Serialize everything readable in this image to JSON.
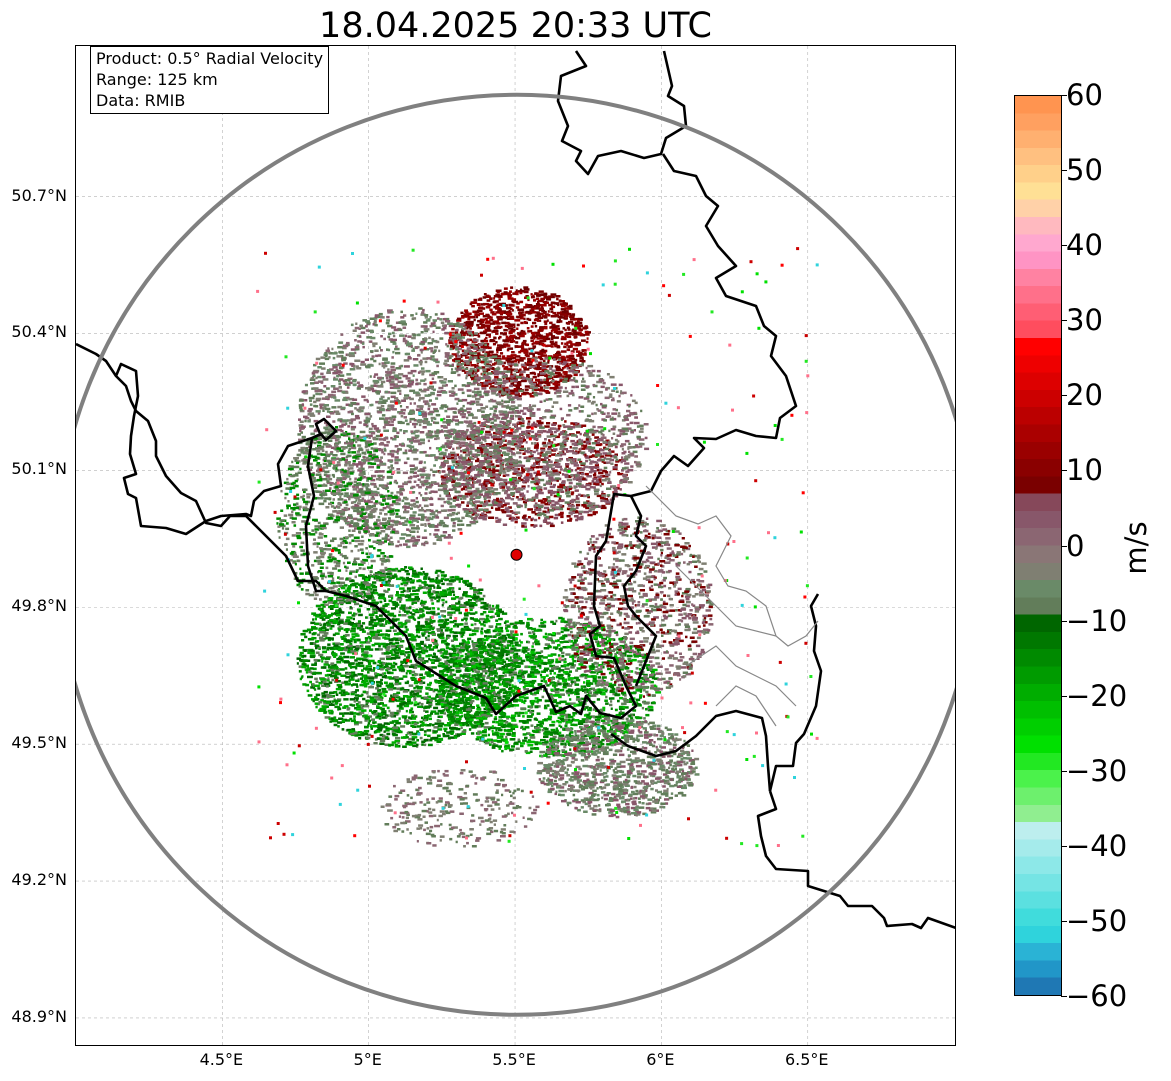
{
  "title": "18.04.2025 20:33 UTC",
  "info": {
    "product": "Product: 0.5° Radial Velocity",
    "range": "Range: 125 km",
    "data": "Data: RMIB"
  },
  "axes": {
    "lat_labels": [
      "50.7°N",
      "50.4°N",
      "50.1°N",
      "49.8°N",
      "49.5°N",
      "49.2°N",
      "48.9°N"
    ],
    "lon_labels": [
      "4.5°E",
      "5°E",
      "5.5°E",
      "6°E",
      "6.5°E"
    ],
    "lat_values": [
      50.7,
      50.4,
      50.1,
      49.8,
      49.5,
      49.2,
      48.9
    ],
    "lon_values": [
      4.5,
      5.0,
      5.5,
      6.0,
      6.5
    ],
    "lon_range": [
      4.0,
      7.0
    ],
    "lat_range": [
      48.8,
      51.0
    ]
  },
  "radar": {
    "lon": 5.505,
    "lat": 49.915,
    "range_km": 125,
    "marker_color": "#e00000",
    "range_ring_color": "#808080"
  },
  "colorbar": {
    "label": "m/s",
    "min": -60,
    "max": 60,
    "ticks": [
      "60",
      "50",
      "40",
      "30",
      "20",
      "10",
      "0",
      "−10",
      "−20",
      "−30",
      "−40",
      "−50",
      "−60"
    ],
    "tick_values": [
      60,
      50,
      40,
      30,
      20,
      10,
      0,
      -10,
      -20,
      -30,
      -40,
      -50,
      -60
    ],
    "colors": [
      "#1f78b4",
      "#2196c8",
      "#2ab3d5",
      "#2fd3dc",
      "#40dcdc",
      "#5be0e0",
      "#75e4e4",
      "#8de8e8",
      "#a5ebeb",
      "#bdeeee",
      "#90ee90",
      "#6df06d",
      "#4bf24b",
      "#22e822",
      "#00e000",
      "#00cf00",
      "#00bf00",
      "#00ad00",
      "#009b00",
      "#008a00",
      "#007800",
      "#006600",
      "#627d5a",
      "#6a8a68",
      "#7f7f72",
      "#8a7676",
      "#8b6672",
      "#88576a",
      "#86485a",
      "#7a0000",
      "#8a0000",
      "#9a0000",
      "#aa0000",
      "#bb0000",
      "#cc0000",
      "#dd0000",
      "#ee0000",
      "#ff0000",
      "#ff4d5e",
      "#ff5e74",
      "#ff708a",
      "#ff82a2",
      "#ff94c4",
      "#ffa8cf",
      "#ffb9bf",
      "#ffd1a8",
      "#ffe095",
      "#ffd08a",
      "#ffc080",
      "#ffb070",
      "#ffa060",
      "#ff9450"
    ]
  }
}
